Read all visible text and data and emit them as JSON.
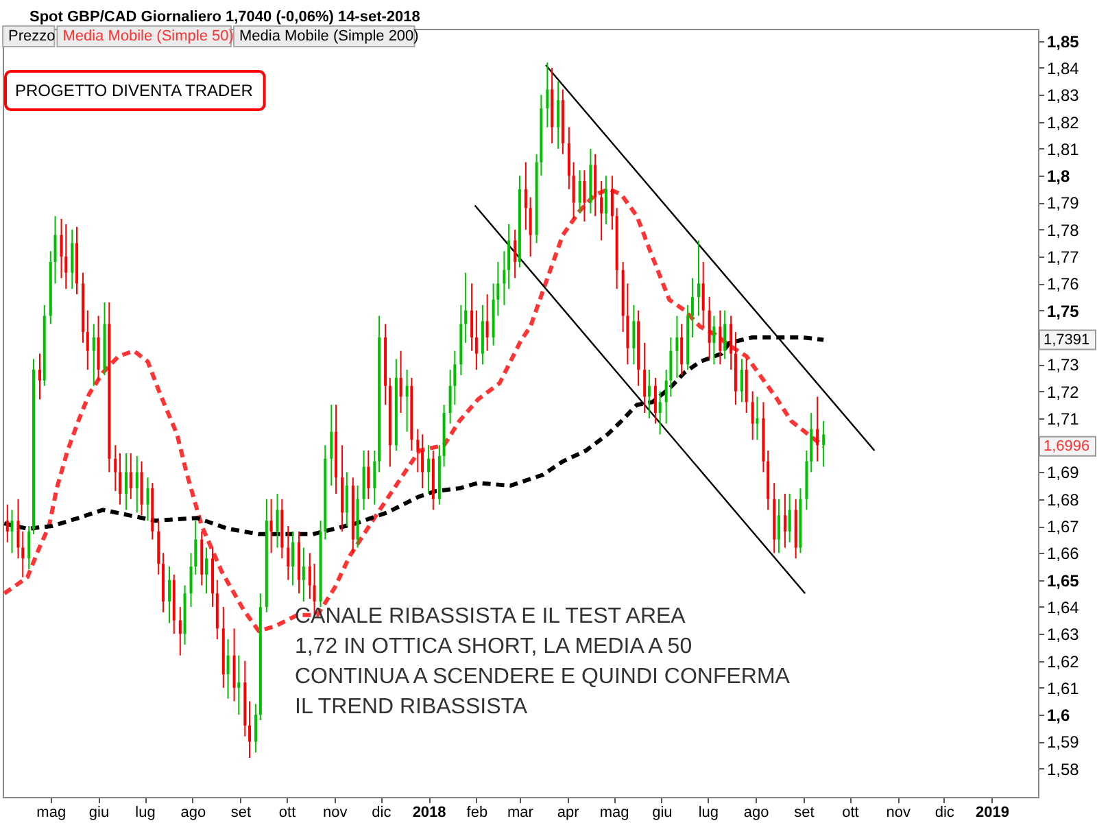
{
  "chart_data": {
    "type": "candlestick",
    "title": "Spot GBP/CAD Giornaliero 1,7040 (-0,06%) 14-set-2018",
    "xlim": [
      "2017-03-31",
      "2019-01-31"
    ],
    "ylim": [
      1.5695,
      1.8545
    ],
    "xticks": [
      {
        "value": "2017-05-01",
        "label": "mag"
      },
      {
        "value": "2017-06-01",
        "label": "giu"
      },
      {
        "value": "2017-07-01",
        "label": "lug"
      },
      {
        "value": "2017-08-01",
        "label": "ago"
      },
      {
        "value": "2017-09-01",
        "label": "set"
      },
      {
        "value": "2017-10-01",
        "label": "ott"
      },
      {
        "value": "2017-11-01",
        "label": "nov"
      },
      {
        "value": "2017-12-01",
        "label": "dic"
      },
      {
        "value": "2018-01-01",
        "label": "2018"
      },
      {
        "value": "2018-02-01",
        "label": "feb"
      },
      {
        "value": "2018-03-01",
        "label": "mar"
      },
      {
        "value": "2018-04-01",
        "label": "apr"
      },
      {
        "value": "2018-05-01",
        "label": "mag"
      },
      {
        "value": "2018-06-01",
        "label": "giu"
      },
      {
        "value": "2018-07-01",
        "label": "lug"
      },
      {
        "value": "2018-08-01",
        "label": "ago"
      },
      {
        "value": "2018-09-01",
        "label": "set"
      },
      {
        "value": "2018-10-01",
        "label": "ott"
      },
      {
        "value": "2018-11-01",
        "label": "nov"
      },
      {
        "value": "2018-12-01",
        "label": "dic"
      },
      {
        "value": "2019-01-01",
        "label": "2019"
      }
    ],
    "yticks": [
      {
        "value": 1.58,
        "label": "1,58"
      },
      {
        "value": 1.59,
        "label": "1,59"
      },
      {
        "value": 1.6,
        "label": "1,6"
      },
      {
        "value": 1.61,
        "label": "1,61"
      },
      {
        "value": 1.62,
        "label": "1,62"
      },
      {
        "value": 1.63,
        "label": "1,63"
      },
      {
        "value": 1.64,
        "label": "1,64"
      },
      {
        "value": 1.65,
        "label": "1,65"
      },
      {
        "value": 1.66,
        "label": "1,66"
      },
      {
        "value": 1.67,
        "label": "1,67"
      },
      {
        "value": 1.68,
        "label": "1,68"
      },
      {
        "value": 1.69,
        "label": "1,69"
      },
      {
        "value": 1.71,
        "label": "1,71"
      },
      {
        "value": 1.72,
        "label": "1,72"
      },
      {
        "value": 1.73,
        "label": "1,73"
      },
      {
        "value": 1.75,
        "label": "1,75"
      },
      {
        "value": 1.76,
        "label": "1,76"
      },
      {
        "value": 1.77,
        "label": "1,77"
      },
      {
        "value": 1.78,
        "label": "1,78"
      },
      {
        "value": 1.79,
        "label": "1,79"
      },
      {
        "value": 1.8,
        "label": "1,8"
      },
      {
        "value": 1.81,
        "label": "1,81"
      },
      {
        "value": 1.82,
        "label": "1,82"
      },
      {
        "value": 1.83,
        "label": "1,83"
      },
      {
        "value": 1.84,
        "label": "1,84"
      },
      {
        "value": 1.85,
        "label": "1,85"
      }
    ],
    "legend": "top left",
    "annotations": [
      "Prezzo",
      "PROGETTO DIVENTA TRADER",
      "CANALE RIBASSISTA E IL TEST AREA\n1,72 IN OTTICA SHORT, LA MEDIA A 50\nCONTINUA A SCENDERE E QUINDI CONFERMA\nIL TREND RIBASSISTA",
      "1,7391",
      "1,6996"
    ],
    "series": [
      {
        "x": [
          "2017-04-03",
          "2017-04-06",
          "2017-04-10",
          "2017-04-13",
          "2017-04-17",
          "2017-04-20",
          "2017-04-24",
          "2017-04-27",
          "2017-05-01",
          "2017-05-04",
          "2017-05-08",
          "2017-05-11",
          "2017-05-15",
          "2017-05-18",
          "2017-05-22",
          "2017-05-25",
          "2017-05-29",
          "2017-06-01",
          "2017-06-05",
          "2017-06-08",
          "2017-06-12",
          "2017-06-15",
          "2017-06-19",
          "2017-06-22",
          "2017-06-26",
          "2017-06-29",
          "2017-07-03",
          "2017-07-06",
          "2017-07-10",
          "2017-07-13",
          "2017-07-17",
          "2017-07-20",
          "2017-07-24",
          "2017-07-27",
          "2017-07-31",
          "2017-08-03",
          "2017-08-07",
          "2017-08-10",
          "2017-08-14",
          "2017-08-17",
          "2017-08-21",
          "2017-08-24",
          "2017-08-28",
          "2017-08-31",
          "2017-09-04",
          "2017-09-07",
          "2017-09-11",
          "2017-09-14",
          "2017-09-18",
          "2017-09-21",
          "2017-09-25",
          "2017-09-28",
          "2017-10-02",
          "2017-10-05",
          "2017-10-09",
          "2017-10-12",
          "2017-10-16",
          "2017-10-19",
          "2017-10-23",
          "2017-10-26",
          "2017-10-30",
          "2017-11-02",
          "2017-11-06",
          "2017-11-09",
          "2017-11-13",
          "2017-11-16",
          "2017-11-20",
          "2017-11-23",
          "2017-11-27",
          "2017-11-30",
          "2017-12-04",
          "2017-12-07",
          "2017-12-11",
          "2017-12-14",
          "2017-12-18",
          "2017-12-21",
          "2017-12-25",
          "2017-12-28",
          "2018-01-01",
          "2018-01-04",
          "2018-01-08",
          "2018-01-11",
          "2018-01-15",
          "2018-01-18",
          "2018-01-22",
          "2018-01-25",
          "2018-01-29",
          "2018-02-01",
          "2018-02-05",
          "2018-02-08",
          "2018-02-12",
          "2018-02-15",
          "2018-02-19",
          "2018-02-22",
          "2018-02-26",
          "2018-03-01",
          "2018-03-05",
          "2018-03-08",
          "2018-03-12",
          "2018-03-15",
          "2018-03-19",
          "2018-03-22",
          "2018-03-26",
          "2018-03-29",
          "2018-04-02",
          "2018-04-05",
          "2018-04-09",
          "2018-04-12",
          "2018-04-16",
          "2018-04-19",
          "2018-04-23",
          "2018-04-26",
          "2018-04-30",
          "2018-05-03",
          "2018-05-07",
          "2018-05-10",
          "2018-05-14",
          "2018-05-17",
          "2018-05-21",
          "2018-05-24",
          "2018-05-28",
          "2018-05-31",
          "2018-06-04",
          "2018-06-07",
          "2018-06-11",
          "2018-06-14",
          "2018-06-18",
          "2018-06-21",
          "2018-06-25",
          "2018-06-28",
          "2018-07-02",
          "2018-07-05",
          "2018-07-09",
          "2018-07-12",
          "2018-07-16",
          "2018-07-19",
          "2018-07-23",
          "2018-07-26",
          "2018-07-30",
          "2018-08-02",
          "2018-08-06",
          "2018-08-09",
          "2018-08-13",
          "2018-08-16",
          "2018-08-20",
          "2018-08-23",
          "2018-08-27",
          "2018-08-30",
          "2018-09-03",
          "2018-09-06",
          "2018-09-10",
          "2018-09-14"
        ],
        "ohlc": [
          [
            1.672,
            1.678,
            1.664,
            1.668
          ],
          [
            1.668,
            1.676,
            1.66,
            1.672
          ],
          [
            1.672,
            1.68,
            1.658,
            1.662
          ],
          [
            1.662,
            1.668,
            1.651,
            1.658
          ],
          [
            1.658,
            1.67,
            1.654,
            1.668
          ],
          [
            1.669,
            1.732,
            1.667,
            1.728
          ],
          [
            1.728,
            1.734,
            1.717,
            1.724
          ],
          [
            1.724,
            1.752,
            1.722,
            1.748
          ],
          [
            1.748,
            1.772,
            1.745,
            1.768
          ],
          [
            1.768,
            1.785,
            1.76,
            1.778
          ],
          [
            1.778,
            1.784,
            1.762,
            1.77
          ],
          [
            1.77,
            1.782,
            1.758,
            1.764
          ],
          [
            1.764,
            1.78,
            1.758,
            1.775
          ],
          [
            1.775,
            1.781,
            1.756,
            1.76
          ],
          [
            1.76,
            1.764,
            1.738,
            1.742
          ],
          [
            1.742,
            1.75,
            1.728,
            1.735
          ],
          [
            1.735,
            1.745,
            1.722,
            1.74
          ],
          [
            1.74,
            1.748,
            1.724,
            1.728
          ],
          [
            1.728,
            1.753,
            1.726,
            1.745
          ],
          [
            1.745,
            1.753,
            1.69,
            1.695
          ],
          [
            1.695,
            1.7,
            1.683,
            1.69
          ],
          [
            1.69,
            1.697,
            1.678,
            1.682
          ],
          [
            1.682,
            1.697,
            1.676,
            1.69
          ],
          [
            1.69,
            1.697,
            1.68,
            1.684
          ],
          [
            1.684,
            1.696,
            1.675,
            1.69
          ],
          [
            1.69,
            1.694,
            1.674,
            1.678
          ],
          [
            1.678,
            1.688,
            1.672,
            1.684
          ],
          [
            1.684,
            1.686,
            1.665,
            1.668
          ],
          [
            1.668,
            1.672,
            1.652,
            1.656
          ],
          [
            1.656,
            1.66,
            1.638,
            1.642
          ],
          [
            1.642,
            1.655,
            1.634,
            1.65
          ],
          [
            1.65,
            1.652,
            1.63,
            1.635
          ],
          [
            1.635,
            1.64,
            1.622,
            1.63
          ],
          [
            1.63,
            1.648,
            1.626,
            1.645
          ],
          [
            1.645,
            1.66,
            1.64,
            1.655
          ],
          [
            1.655,
            1.672,
            1.652,
            1.665
          ],
          [
            1.665,
            1.668,
            1.648,
            1.652
          ],
          [
            1.652,
            1.662,
            1.645,
            1.658
          ],
          [
            1.658,
            1.662,
            1.64,
            1.645
          ],
          [
            1.645,
            1.65,
            1.628,
            1.632
          ],
          [
            1.632,
            1.64,
            1.61,
            1.615
          ],
          [
            1.615,
            1.628,
            1.606,
            1.622
          ],
          [
            1.622,
            1.632,
            1.605,
            1.61
          ],
          [
            1.61,
            1.622,
            1.6,
            1.612
          ],
          [
            1.612,
            1.62,
            1.592,
            1.596
          ],
          [
            1.596,
            1.605,
            1.584,
            1.59
          ],
          [
            1.59,
            1.604,
            1.586,
            1.6
          ],
          [
            1.6,
            1.645,
            1.598,
            1.64
          ],
          [
            1.64,
            1.68,
            1.638,
            1.672
          ],
          [
            1.672,
            1.68,
            1.66,
            1.668
          ],
          [
            1.668,
            1.682,
            1.662,
            1.676
          ],
          [
            1.676,
            1.68,
            1.658,
            1.662
          ],
          [
            1.662,
            1.67,
            1.65,
            1.655
          ],
          [
            1.655,
            1.668,
            1.648,
            1.664
          ],
          [
            1.664,
            1.668,
            1.645,
            1.65
          ],
          [
            1.65,
            1.662,
            1.642,
            1.655
          ],
          [
            1.655,
            1.66,
            1.643,
            1.648
          ],
          [
            1.648,
            1.656,
            1.636,
            1.642
          ],
          [
            1.642,
            1.672,
            1.64,
            1.668
          ],
          [
            1.668,
            1.7,
            1.665,
            1.695
          ],
          [
            1.695,
            1.715,
            1.685,
            1.705
          ],
          [
            1.705,
            1.715,
            1.682,
            1.688
          ],
          [
            1.688,
            1.7,
            1.668,
            1.675
          ],
          [
            1.675,
            1.69,
            1.67,
            1.685
          ],
          [
            1.685,
            1.688,
            1.66,
            1.665
          ],
          [
            1.665,
            1.685,
            1.662,
            1.68
          ],
          [
            1.68,
            1.698,
            1.676,
            1.692
          ],
          [
            1.692,
            1.698,
            1.68,
            1.684
          ],
          [
            1.684,
            1.698,
            1.678,
            1.694
          ],
          [
            1.694,
            1.748,
            1.69,
            1.74
          ],
          [
            1.74,
            1.745,
            1.715,
            1.722
          ],
          [
            1.722,
            1.725,
            1.692,
            1.7
          ],
          [
            1.7,
            1.732,
            1.698,
            1.725
          ],
          [
            1.725,
            1.735,
            1.712,
            1.718
          ],
          [
            1.718,
            1.728,
            1.705,
            1.722
          ],
          [
            1.722,
            1.725,
            1.698,
            1.702
          ],
          [
            1.702,
            1.706,
            1.69,
            1.698
          ],
          [
            1.698,
            1.704,
            1.684,
            1.69
          ],
          [
            1.69,
            1.7,
            1.682,
            1.695
          ],
          [
            1.695,
            1.698,
            1.676,
            1.68
          ],
          [
            1.68,
            1.7,
            1.678,
            1.696
          ],
          [
            1.696,
            1.715,
            1.692,
            1.712
          ],
          [
            1.712,
            1.728,
            1.708,
            1.722
          ],
          [
            1.722,
            1.735,
            1.715,
            1.73
          ],
          [
            1.73,
            1.752,
            1.726,
            1.745
          ],
          [
            1.745,
            1.764,
            1.738,
            1.75
          ],
          [
            1.75,
            1.76,
            1.735,
            1.74
          ],
          [
            1.74,
            1.75,
            1.728,
            1.734
          ],
          [
            1.734,
            1.752,
            1.73,
            1.746
          ],
          [
            1.746,
            1.756,
            1.735,
            1.74
          ],
          [
            1.74,
            1.76,
            1.737,
            1.754
          ],
          [
            1.754,
            1.768,
            1.748,
            1.76
          ],
          [
            1.76,
            1.772,
            1.752,
            1.765
          ],
          [
            1.765,
            1.782,
            1.758,
            1.776
          ],
          [
            1.776,
            1.78,
            1.762,
            1.768
          ],
          [
            1.768,
            1.8,
            1.766,
            1.795
          ],
          [
            1.795,
            1.805,
            1.78,
            1.788
          ],
          [
            1.788,
            1.792,
            1.77,
            1.778
          ],
          [
            1.778,
            1.808,
            1.775,
            1.805
          ],
          [
            1.805,
            1.83,
            1.8,
            1.825
          ],
          [
            1.825,
            1.842,
            1.818,
            1.832
          ],
          [
            1.832,
            1.84,
            1.812,
            1.818
          ],
          [
            1.818,
            1.835,
            1.81,
            1.828
          ],
          [
            1.828,
            1.832,
            1.808,
            1.812
          ],
          [
            1.812,
            1.818,
            1.795,
            1.8
          ],
          [
            1.8,
            1.805,
            1.784,
            1.79
          ],
          [
            1.79,
            1.802,
            1.786,
            1.798
          ],
          [
            1.798,
            1.802,
            1.783,
            1.79
          ],
          [
            1.79,
            1.81,
            1.786,
            1.804
          ],
          [
            1.804,
            1.808,
            1.785,
            1.792
          ],
          [
            1.792,
            1.798,
            1.776,
            1.786
          ],
          [
            1.786,
            1.8,
            1.782,
            1.795
          ],
          [
            1.795,
            1.8,
            1.78,
            1.785
          ],
          [
            1.785,
            1.788,
            1.758,
            1.765
          ],
          [
            1.765,
            1.768,
            1.742,
            1.748
          ],
          [
            1.748,
            1.76,
            1.73,
            1.736
          ],
          [
            1.736,
            1.752,
            1.73,
            1.746
          ],
          [
            1.746,
            1.75,
            1.722,
            1.728
          ],
          [
            1.728,
            1.738,
            1.712,
            1.718
          ],
          [
            1.718,
            1.728,
            1.71,
            1.722
          ],
          [
            1.722,
            1.725,
            1.708,
            1.712
          ],
          [
            1.712,
            1.72,
            1.704,
            1.716
          ],
          [
            1.716,
            1.728,
            1.708,
            1.724
          ],
          [
            1.724,
            1.74,
            1.718,
            1.735
          ],
          [
            1.735,
            1.748,
            1.725,
            1.74
          ],
          [
            1.74,
            1.745,
            1.726,
            1.73
          ],
          [
            1.73,
            1.752,
            1.728,
            1.748
          ],
          [
            1.748,
            1.762,
            1.74,
            1.755
          ],
          [
            1.755,
            1.776,
            1.748,
            1.76
          ],
          [
            1.76,
            1.768,
            1.744,
            1.75
          ],
          [
            1.75,
            1.755,
            1.732,
            1.738
          ],
          [
            1.738,
            1.748,
            1.73,
            1.744
          ],
          [
            1.744,
            1.75,
            1.73,
            1.735
          ],
          [
            1.735,
            1.75,
            1.732,
            1.745
          ],
          [
            1.745,
            1.748,
            1.728,
            1.734
          ],
          [
            1.734,
            1.742,
            1.715,
            1.72
          ],
          [
            1.72,
            1.732,
            1.716,
            1.728
          ],
          [
            1.728,
            1.732,
            1.712,
            1.716
          ],
          [
            1.716,
            1.72,
            1.702,
            1.708
          ],
          [
            1.708,
            1.718,
            1.702,
            1.71
          ],
          [
            1.71,
            1.716,
            1.69,
            1.694
          ],
          [
            1.694,
            1.698,
            1.676,
            1.68
          ],
          [
            1.68,
            1.686,
            1.66,
            1.665
          ],
          [
            1.665,
            1.68,
            1.66,
            1.674
          ],
          [
            1.674,
            1.682,
            1.662,
            1.668
          ],
          [
            1.668,
            1.682,
            1.664,
            1.676
          ],
          [
            1.676,
            1.68,
            1.658,
            1.662
          ],
          [
            1.662,
            1.684,
            1.66,
            1.68
          ],
          [
            1.68,
            1.698,
            1.676,
            1.694
          ],
          [
            1.694,
            1.712,
            1.69,
            1.706
          ],
          [
            1.706,
            1.718,
            1.694,
            1.7
          ],
          [
            1.7,
            1.709,
            1.692,
            1.704
          ]
        ],
        "colors": [
          "#ff0000",
          "#00c000",
          "#ff0000",
          "#ff0000",
          "#00c000",
          "#00c000",
          "#ff0000",
          "#00c000",
          "#00c000",
          "#00c000",
          "#ff0000",
          "#ff0000",
          "#00c000",
          "#ff0000",
          "#ff0000",
          "#ff0000",
          "#00c000",
          "#ff0000",
          "#00c000",
          "#ff0000",
          "#ff0000",
          "#ff0000",
          "#00c000",
          "#ff0000",
          "#00c000",
          "#ff0000",
          "#00c000",
          "#ff0000",
          "#ff0000",
          "#ff0000",
          "#00c000",
          "#ff0000",
          "#ff0000",
          "#00c000",
          "#00c000",
          "#00c000",
          "#ff0000",
          "#00c000",
          "#ff0000",
          "#ff0000",
          "#ff0000",
          "#00c000",
          "#ff0000",
          "#00c000",
          "#ff0000",
          "#ff0000",
          "#00c000",
          "#00c000",
          "#00c000",
          "#ff0000",
          "#00c000",
          "#ff0000",
          "#ff0000",
          "#00c000",
          "#ff0000",
          "#00c000",
          "#ff0000",
          "#ff0000",
          "#00c000",
          "#00c000",
          "#00c000",
          "#ff0000",
          "#ff0000",
          "#00c000",
          "#ff0000",
          "#00c000",
          "#00c000",
          "#ff0000",
          "#00c000",
          "#00c000",
          "#ff0000",
          "#ff0000",
          "#00c000",
          "#ff0000",
          "#00c000",
          "#ff0000",
          "#ff0000",
          "#ff0000",
          "#00c000",
          "#ff0000",
          "#00c000",
          "#00c000",
          "#00c000",
          "#00c000",
          "#00c000",
          "#00c000",
          "#ff0000",
          "#ff0000",
          "#00c000",
          "#ff0000",
          "#00c000",
          "#00c000",
          "#00c000",
          "#00c000",
          "#ff0000",
          "#00c000",
          "#ff0000",
          "#ff0000",
          "#00c000",
          "#00c000",
          "#00c000",
          "#ff0000",
          "#00c000",
          "#ff0000",
          "#ff0000",
          "#ff0000",
          "#00c000",
          "#ff0000",
          "#00c000",
          "#ff0000",
          "#ff0000",
          "#00c000",
          "#ff0000",
          "#ff0000",
          "#ff0000",
          "#ff0000",
          "#00c000",
          "#ff0000",
          "#ff0000",
          "#00c000",
          "#ff0000",
          "#00c000",
          "#00c000",
          "#00c000",
          "#00c000",
          "#ff0000",
          "#00c000",
          "#00c000",
          "#00c000",
          "#ff0000",
          "#ff0000",
          "#00c000",
          "#ff0000",
          "#00c000",
          "#ff0000",
          "#ff0000",
          "#00c000",
          "#ff0000",
          "#ff0000",
          "#00c000",
          "#ff0000",
          "#ff0000",
          "#ff0000",
          "#00c000",
          "#ff0000",
          "#00c000",
          "#ff0000",
          "#00c000",
          "#00c000",
          "#00c000",
          "#ff0000",
          "#00c000"
        ]
      },
      {
        "name": "Media Mobile (Simple 50)",
        "type": "line",
        "color": "#ff3333",
        "line_style": "dashed",
        "x": [
          "2017-04-01",
          "2017-04-16",
          "2017-04-23",
          "2017-04-30",
          "2017-05-05",
          "2017-05-12",
          "2017-05-19",
          "2017-05-26",
          "2017-06-04",
          "2017-06-14",
          "2017-06-24",
          "2017-07-03",
          "2017-07-11",
          "2017-07-22",
          "2017-07-28",
          "2017-08-07",
          "2017-08-20",
          "2017-09-03",
          "2017-09-13",
          "2017-09-24",
          "2017-10-08",
          "2017-10-21",
          "2017-11-01",
          "2017-11-11",
          "2017-11-28",
          "2017-12-12",
          "2017-12-26",
          "2018-01-11",
          "2018-01-21",
          "2018-02-02",
          "2018-02-16",
          "2018-03-02",
          "2018-03-08",
          "2018-03-19",
          "2018-03-29",
          "2018-04-09",
          "2018-04-19",
          "2018-04-28",
          "2018-05-06",
          "2018-05-16",
          "2018-05-26",
          "2018-06-06",
          "2018-06-16",
          "2018-06-26",
          "2018-07-06",
          "2018-07-15",
          "2018-07-26",
          "2018-08-05",
          "2018-08-15",
          "2018-08-24",
          "2018-09-04",
          "2018-09-14"
        ],
        "values": [
          1.645,
          1.651,
          1.661,
          1.67,
          1.684,
          1.698,
          1.709,
          1.719,
          1.727,
          1.733,
          1.735,
          1.731,
          1.719,
          1.704,
          1.69,
          1.67,
          1.653,
          1.639,
          1.631,
          1.633,
          1.637,
          1.637,
          1.647,
          1.659,
          1.674,
          1.686,
          1.698,
          1.7,
          1.709,
          1.717,
          1.723,
          1.739,
          1.744,
          1.762,
          1.778,
          1.787,
          1.793,
          1.795,
          1.793,
          1.785,
          1.77,
          1.754,
          1.75,
          1.744,
          1.741,
          1.737,
          1.733,
          1.725,
          1.717,
          1.709,
          1.704,
          1.6996
        ]
      },
      {
        "name": "Media Mobile (Simple 200)",
        "type": "line",
        "color": "#000000",
        "line_style": "dashed",
        "x": [
          "2017-04-01",
          "2017-04-16",
          "2017-05-02",
          "2017-05-19",
          "2017-06-04",
          "2017-06-21",
          "2017-07-08",
          "2017-08-04",
          "2017-08-24",
          "2017-09-13",
          "2017-10-04",
          "2017-10-18",
          "2017-11-01",
          "2017-11-15",
          "2017-12-05",
          "2017-12-26",
          "2018-01-06",
          "2018-01-21",
          "2018-02-02",
          "2018-02-23",
          "2018-03-16",
          "2018-03-29",
          "2018-04-13",
          "2018-04-27",
          "2018-05-06",
          "2018-05-16",
          "2018-05-26",
          "2018-06-06",
          "2018-06-16",
          "2018-06-26",
          "2018-07-10",
          "2018-07-15",
          "2018-07-30",
          "2018-08-15",
          "2018-08-31",
          "2018-09-14"
        ],
        "values": [
          1.671,
          1.669,
          1.67,
          1.673,
          1.676,
          1.674,
          1.672,
          1.673,
          1.669,
          1.667,
          1.667,
          1.667,
          1.669,
          1.671,
          1.675,
          1.681,
          1.683,
          1.684,
          1.686,
          1.685,
          1.689,
          1.694,
          1.698,
          1.704,
          1.709,
          1.715,
          1.716,
          1.721,
          1.727,
          1.731,
          1.734,
          1.738,
          1.74,
          1.74,
          1.74,
          1.7391
        ]
      },
      {
        "type": "line",
        "color": "#000000",
        "x": [
          "2018-03-18",
          "2018-10-17"
        ],
        "values": [
          1.841,
          1.698
        ]
      },
      {
        "type": "line",
        "color": "#000000",
        "x": [
          "2018-01-31",
          "2018-09-02"
        ],
        "values": [
          1.789,
          1.645
        ]
      }
    ]
  }
}
